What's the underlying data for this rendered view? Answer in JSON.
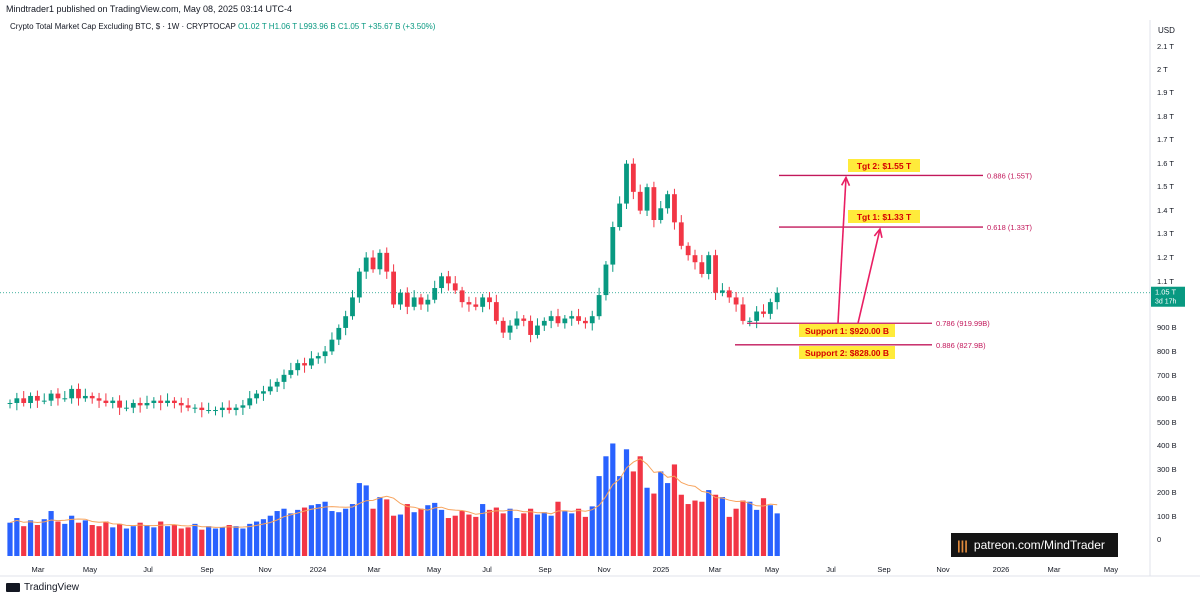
{
  "header": {
    "published": "Mindtrader1 published on TradingView.com, May 08, 2025 03:14 UTC-4",
    "symbol": "Crypto Total Market Cap Excluding BTC, $ · 1W · CRYPTOCAP",
    "ohlc": "O1.02 T  H1.06 T  L993.96 B  C1.05 T  +35.67 B (+3.50%)"
  },
  "footer": {
    "brand": "TradingView"
  },
  "watermark": {
    "text": "patreon.com/MindTrader"
  },
  "colors": {
    "up": "#089981",
    "down": "#f23645",
    "vol_up": "#2962ff",
    "vol_down": "#f23645",
    "ma": "#f7a35c",
    "level": "#c2185b",
    "arrow": "#e91e63"
  },
  "chart_data": {
    "type": "candlestick",
    "timeframe": "1W",
    "y_axis": {
      "unit": "USD",
      "ticks": [
        "2.1 T",
        "2 T",
        "1.9 T",
        "1.8 T",
        "1.7 T",
        "1.6 T",
        "1.5 T",
        "1.4 T",
        "1.3 T",
        "1.2 T",
        "1.1 T",
        "900 B",
        "800 B",
        "700 B",
        "600 B",
        "500 B",
        "400 B",
        "300 B",
        "200 B",
        "100 B",
        "0"
      ]
    },
    "x_axis": {
      "ticks": [
        "Mar",
        "May",
        "Jul",
        "Sep",
        "Nov",
        "2024",
        "Mar",
        "May",
        "Jul",
        "Sep",
        "Nov",
        "2025",
        "Mar",
        "May",
        "Jul",
        "Sep",
        "Nov",
        "2026",
        "Mar",
        "May"
      ]
    },
    "last_price": {
      "value": "1.05 T",
      "countdown": "3d 17h"
    },
    "close_series_T": [
      0.58,
      0.6,
      0.58,
      0.61,
      0.59,
      0.59,
      0.62,
      0.6,
      0.6,
      0.64,
      0.6,
      0.61,
      0.6,
      0.59,
      0.58,
      0.59,
      0.56,
      0.56,
      0.58,
      0.57,
      0.58,
      0.59,
      0.58,
      0.59,
      0.58,
      0.57,
      0.56,
      0.56,
      0.55,
      0.55,
      0.55,
      0.56,
      0.55,
      0.56,
      0.57,
      0.6,
      0.62,
      0.63,
      0.65,
      0.67,
      0.7,
      0.72,
      0.75,
      0.74,
      0.77,
      0.78,
      0.8,
      0.85,
      0.9,
      0.95,
      1.03,
      1.14,
      1.2,
      1.15,
      1.22,
      1.14,
      1.0,
      1.05,
      0.99,
      1.03,
      1.0,
      1.02,
      1.07,
      1.12,
      1.09,
      1.06,
      1.01,
      1.0,
      0.99,
      1.03,
      1.01,
      0.93,
      0.88,
      0.91,
      0.94,
      0.93,
      0.87,
      0.91,
      0.93,
      0.95,
      0.92,
      0.94,
      0.95,
      0.93,
      0.92,
      0.95,
      1.04,
      1.17,
      1.33,
      1.43,
      1.6,
      1.48,
      1.4,
      1.5,
      1.36,
      1.41,
      1.47,
      1.35,
      1.25,
      1.21,
      1.18,
      1.13,
      1.21,
      1.05,
      1.06,
      1.03,
      1.0,
      0.93,
      0.93,
      0.97,
      0.96,
      1.01,
      1.05
    ],
    "volume_B": [
      70,
      90,
      55,
      80,
      60,
      85,
      120,
      75,
      65,
      100,
      70,
      80,
      60,
      55,
      75,
      50,
      65,
      45,
      55,
      70,
      60,
      50,
      75,
      55,
      60,
      45,
      50,
      65,
      40,
      55,
      45,
      50,
      60,
      55,
      45,
      65,
      75,
      85,
      100,
      120,
      130,
      110,
      125,
      135,
      145,
      150,
      160,
      120,
      115,
      130,
      150,
      240,
      230,
      130,
      180,
      170,
      100,
      105,
      150,
      115,
      130,
      145,
      155,
      125,
      90,
      100,
      120,
      105,
      95,
      150,
      125,
      135,
      110,
      130,
      90,
      110,
      130,
      105,
      115,
      100,
      160,
      120,
      110,
      130,
      95,
      140,
      270,
      355,
      410,
      270,
      385,
      290,
      355,
      220,
      195,
      290,
      240,
      320,
      190,
      150,
      165,
      160,
      210,
      190,
      180,
      95,
      130,
      165,
      160,
      125,
      175,
      145,
      110
    ],
    "volume_ma": {
      "label": "20-period average"
    },
    "fib_labels": [
      {
        "id": "fib_886_top",
        "text": "0.886 (1.55T)",
        "price_T": 1.55
      },
      {
        "id": "fib_618",
        "text": "0.618 (1.33T)",
        "price_T": 1.33
      },
      {
        "id": "fib_786",
        "text": "0.786 (919.99B)",
        "price_T": 0.92
      },
      {
        "id": "fib_886_bot",
        "text": "0.886 (827.9B)",
        "price_T": 0.828
      }
    ],
    "targets": [
      {
        "id": "tgt2",
        "text": "Tgt 2: $1.55 T",
        "price_T": 1.55
      },
      {
        "id": "tgt1",
        "text": "Tgt 1: $1.33 T",
        "price_T": 1.33
      }
    ],
    "supports": [
      {
        "id": "sup1",
        "text": "Support 1: $920.00 B",
        "price_T": 0.92
      },
      {
        "id": "sup2",
        "text": "Support 2: $828.00 B",
        "price_T": 0.828
      }
    ]
  }
}
